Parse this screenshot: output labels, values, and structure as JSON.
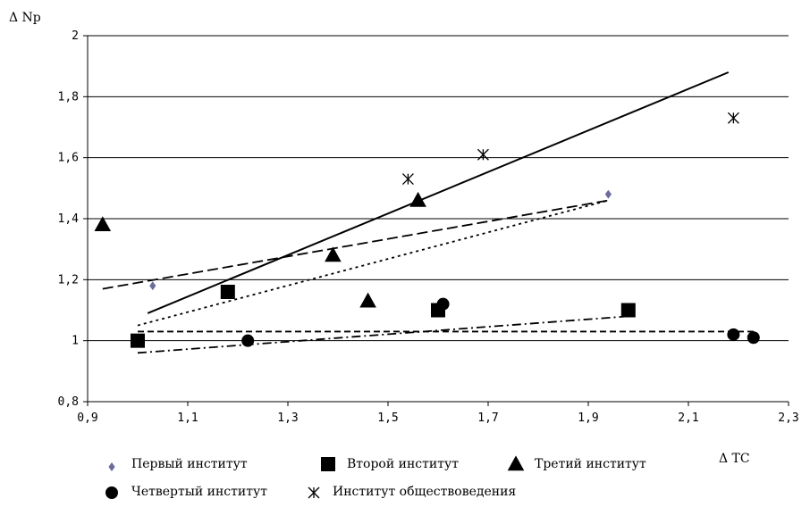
{
  "chart_data": {
    "type": "scatter",
    "xlabel": "Δ TC",
    "ylabel": "Δ Np",
    "xlim": [
      0.9,
      2.3
    ],
    "ylim": [
      0.8,
      2.0
    ],
    "x_ticks": [
      "0,9",
      "1,1",
      "1,3",
      "1,5",
      "1,7",
      "1,9",
      "2,1",
      "2,3"
    ],
    "y_ticks": [
      "0,8",
      "1",
      "1,2",
      "1,4",
      "1,6",
      "1,8",
      "2"
    ],
    "grid": "horizontal",
    "legend_position": "bottom",
    "series": [
      {
        "name": "Первый институт",
        "marker": "diamond",
        "color": "#6b6b9e",
        "points": [
          [
            1.03,
            1.18
          ],
          [
            1.94,
            1.48
          ]
        ],
        "trend": {
          "style": "long-dash",
          "x": [
            0.93,
            1.94
          ],
          "y": [
            1.17,
            1.46
          ]
        }
      },
      {
        "name": "Второй институт",
        "marker": "square",
        "color": "#000000",
        "points": [
          [
            1.0,
            1.0
          ],
          [
            1.18,
            1.16
          ],
          [
            1.6,
            1.1
          ],
          [
            1.98,
            1.1
          ]
        ],
        "trend": {
          "style": "dash-dot",
          "x": [
            1.0,
            1.98
          ],
          "y": [
            0.96,
            1.08
          ]
        }
      },
      {
        "name": "Третий институт",
        "marker": "triangle",
        "color": "#000000",
        "points": [
          [
            0.93,
            1.38
          ],
          [
            1.39,
            1.28
          ],
          [
            1.46,
            1.13
          ],
          [
            1.56,
            1.46
          ]
        ],
        "trend": {
          "style": "dotted",
          "x": [
            1.0,
            1.94
          ],
          "y": [
            1.05,
            1.46
          ]
        }
      },
      {
        "name": "Четвертый институт",
        "marker": "circle",
        "color": "#000000",
        "points": [
          [
            1.22,
            1.0
          ],
          [
            1.61,
            1.12
          ],
          [
            2.19,
            1.02
          ],
          [
            2.23,
            1.01
          ]
        ],
        "trend": {
          "style": "dashed",
          "x": [
            1.0,
            2.23
          ],
          "y": [
            1.03,
            1.03
          ]
        }
      },
      {
        "name": "Институт обществоведения",
        "marker": "asterisk",
        "color": "#000000",
        "points": [
          [
            1.54,
            1.53
          ],
          [
            1.69,
            1.61
          ],
          [
            2.19,
            1.73
          ]
        ],
        "trend": {
          "style": "solid",
          "x": [
            1.02,
            2.18
          ],
          "y": [
            1.09,
            1.88
          ]
        }
      }
    ]
  }
}
